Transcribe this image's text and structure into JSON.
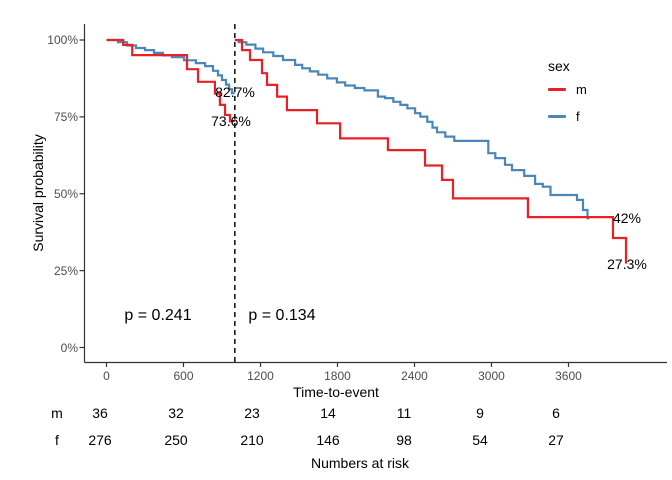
{
  "chart_data": {
    "type": "line",
    "subtype": "kaplan-meier-step-landmark",
    "title": "",
    "xlabel": "Time-to-event",
    "ylabel": "Survival probability",
    "xlim": [
      -175,
      4400
    ],
    "ylim": [
      0,
      105
    ],
    "grid": false,
    "legend_position": "right",
    "x_ticks": {
      "values": [
        0,
        600,
        1200,
        1800,
        2400,
        3000,
        3600
      ],
      "labels": [
        "0",
        "600",
        "1200",
        "1800",
        "2400",
        "3000",
        "3600"
      ]
    },
    "y_ticks": {
      "values": [
        0,
        25,
        50,
        75,
        100
      ],
      "labels": [
        "0%",
        "25%",
        "50%",
        "75%",
        "100%"
      ]
    },
    "landmark": {
      "time": 1000,
      "style": "dashed-vertical-line",
      "color": "#1a1a1a"
    },
    "colors": {
      "m": "#E82127",
      "f": "#4A86B8",
      "axis": "#333333",
      "tick_text": "#4d4d4d"
    },
    "legend": {
      "title": "sex",
      "entries": [
        {
          "label": "m",
          "color": "#E82127"
        },
        {
          "label": "f",
          "color": "#4A86B8"
        }
      ]
    },
    "series": [
      {
        "name": "f-pre-landmark",
        "group": "f",
        "color": "#4A86B8",
        "steps": [
          [
            0,
            100
          ],
          [
            90,
            99.3
          ],
          [
            160,
            98.2
          ],
          [
            230,
            97.4
          ],
          [
            300,
            96.7
          ],
          [
            370,
            95.8
          ],
          [
            440,
            95.0
          ],
          [
            510,
            94.4
          ],
          [
            604,
            93.4
          ],
          [
            697,
            92.5
          ],
          [
            768,
            91.5
          ],
          [
            830,
            90.0
          ],
          [
            869,
            88.5
          ],
          [
            900,
            87.0
          ],
          [
            931,
            85.5
          ],
          [
            955,
            84.0
          ],
          [
            978,
            82.7
          ],
          [
            1000,
            82.7
          ]
        ]
      },
      {
        "name": "m-pre-landmark",
        "group": "m",
        "color": "#E82127",
        "steps": [
          [
            0,
            100
          ],
          [
            130,
            98.4
          ],
          [
            200,
            95.1
          ],
          [
            627,
            90.5
          ],
          [
            713,
            86.4
          ],
          [
            845,
            82.6
          ],
          [
            884,
            78.9
          ],
          [
            923,
            75.6
          ],
          [
            962,
            73.6
          ],
          [
            1000,
            73.6
          ]
        ]
      },
      {
        "name": "f-post-landmark",
        "group": "f",
        "color": "#4A86B8",
        "steps": [
          [
            1000,
            100
          ],
          [
            1030,
            99.3
          ],
          [
            1090,
            98.5
          ],
          [
            1160,
            97.2
          ],
          [
            1220,
            96.0
          ],
          [
            1300,
            94.8
          ],
          [
            1375,
            93.5
          ],
          [
            1470,
            91.9
          ],
          [
            1525,
            90.8
          ],
          [
            1585,
            89.8
          ],
          [
            1650,
            88.7
          ],
          [
            1720,
            87.5
          ],
          [
            1795,
            86.2
          ],
          [
            1860,
            85.2
          ],
          [
            1935,
            84.4
          ],
          [
            2010,
            83.6
          ],
          [
            2115,
            81.6
          ],
          [
            2170,
            81.1
          ],
          [
            2235,
            79.9
          ],
          [
            2290,
            78.9
          ],
          [
            2345,
            77.8
          ],
          [
            2405,
            76.2
          ],
          [
            2445,
            75.1
          ],
          [
            2500,
            73.4
          ],
          [
            2540,
            71.5
          ],
          [
            2575,
            70.0
          ],
          [
            2640,
            68.6
          ],
          [
            2710,
            67.2
          ],
          [
            2975,
            63.2
          ],
          [
            3030,
            61.6
          ],
          [
            3105,
            59.4
          ],
          [
            3160,
            57.7
          ],
          [
            3255,
            55.8
          ],
          [
            3340,
            53.2
          ],
          [
            3400,
            52.3
          ],
          [
            3460,
            49.6
          ],
          [
            3666,
            48.0
          ],
          [
            3713,
            44.7
          ],
          [
            3748,
            42.0
          ],
          [
            3762,
            42.0
          ]
        ]
      },
      {
        "name": "m-post-landmark",
        "group": "m",
        "color": "#E82127",
        "steps": [
          [
            1000,
            100
          ],
          [
            1056,
            96.7
          ],
          [
            1118,
            93.5
          ],
          [
            1212,
            89.2
          ],
          [
            1251,
            85.4
          ],
          [
            1329,
            81.6
          ],
          [
            1406,
            77.2
          ],
          [
            1640,
            72.9
          ],
          [
            1820,
            68.0
          ],
          [
            2193,
            64.2
          ],
          [
            2482,
            59.2
          ],
          [
            2614,
            54.5
          ],
          [
            2700,
            48.5
          ],
          [
            3284,
            42.4
          ],
          [
            3947,
            35.6
          ],
          [
            4048,
            27.3
          ]
        ]
      }
    ],
    "annotations": [
      {
        "text": "82.7%",
        "time": 1000,
        "pct": 82.7,
        "meaning": "f survival at landmark"
      },
      {
        "text": "73.6%",
        "time": 975,
        "pct": 73.6,
        "meaning": "m survival at landmark"
      },
      {
        "text": "42%",
        "time": 4055,
        "pct": 42,
        "meaning": "f final survival"
      },
      {
        "text": "27.3%",
        "time": 4055,
        "pct": 27.3,
        "meaning": "m final survival"
      },
      {
        "text": "p = 0.241",
        "time": 420,
        "pct": 10.5,
        "meaning": "log-rank p before landmark"
      },
      {
        "text": "p = 0.134",
        "time": 1380,
        "pct": 10.5,
        "meaning": "log-rank p after landmark"
      }
    ],
    "risk_table": {
      "title": "Numbers at risk",
      "times": [
        0,
        600,
        1200,
        1800,
        2400,
        3000,
        3600
      ],
      "rows": [
        {
          "label": "m",
          "counts": [
            36,
            32,
            23,
            14,
            11,
            9,
            6
          ]
        },
        {
          "label": "f",
          "counts": [
            276,
            250,
            210,
            146,
            98,
            54,
            27
          ]
        }
      ]
    }
  }
}
